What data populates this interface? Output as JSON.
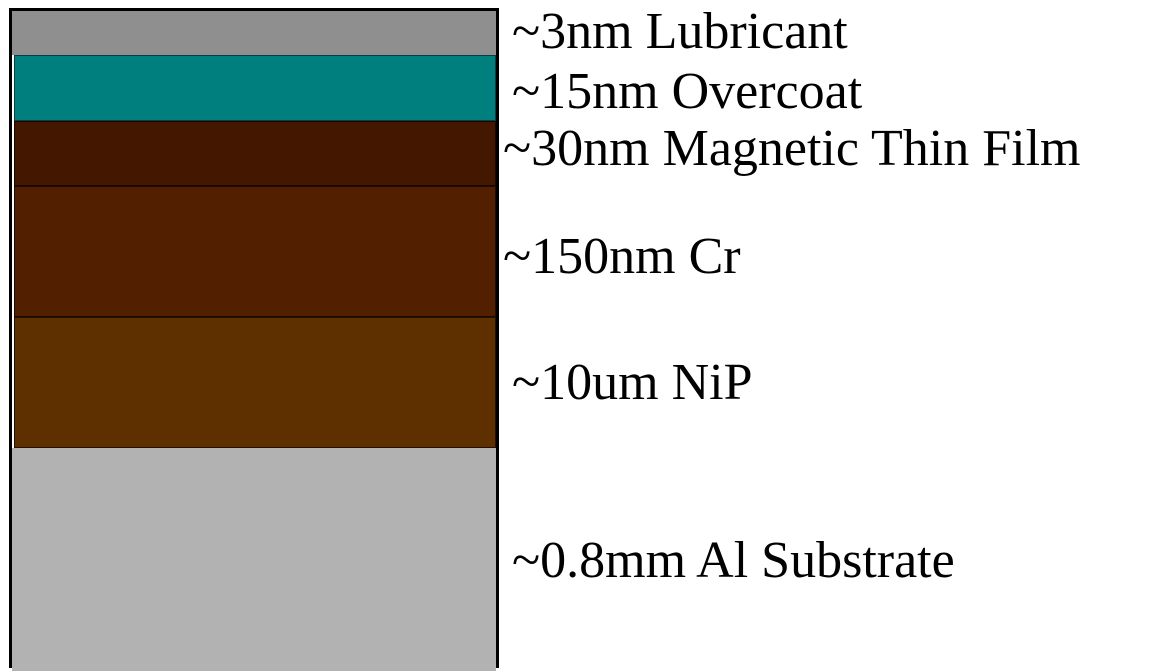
{
  "layers": [
    {
      "label": "~3nm Lubricant",
      "color": "#8f8f8f"
    },
    {
      "label": "~15nm Overcoat",
      "color": "#007f7f"
    },
    {
      "label": "~30nm Magnetic Thin Film",
      "color": "#441800"
    },
    {
      "label": "~150nm Cr",
      "color": "#522000"
    },
    {
      "label": "~10um NiP",
      "color": "#5e3000"
    },
    {
      "label": "~0.8mm Al Substrate",
      "color": "#b2b2b2"
    }
  ]
}
